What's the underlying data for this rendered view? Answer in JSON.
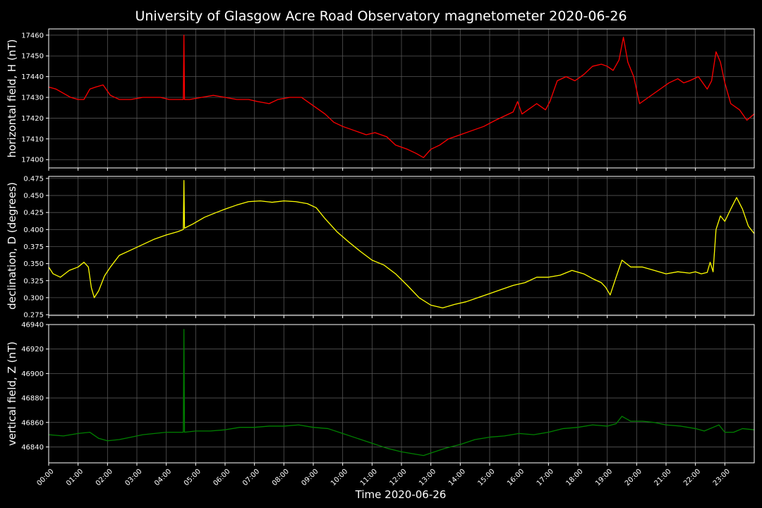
{
  "chart_data": {
    "title": "University of Glasgow Acre Road Observatory magnetometer 2020-06-26",
    "xlabel": "Time 2020-06-26",
    "x_tick_labels": [
      "00:00",
      "01:00",
      "02:00",
      "03:00",
      "04:00",
      "05:00",
      "06:00",
      "07:00",
      "08:00",
      "09:00",
      "10:00",
      "11:00",
      "12:00",
      "13:00",
      "14:00",
      "15:00",
      "16:00",
      "17:00",
      "18:00",
      "19:00",
      "20:00",
      "21:00",
      "22:00",
      "23:00"
    ],
    "xlim_hours": [
      0,
      24
    ],
    "grid": true,
    "panels": [
      {
        "type": "line",
        "ylabel": "horizontal field, H (nT)",
        "color": "#ff0000",
        "ylim": [
          17396,
          17463
        ],
        "yticks": [
          17400,
          17410,
          17420,
          17430,
          17440,
          17450,
          17460
        ],
        "x": [
          0,
          0.25,
          0.5,
          0.75,
          1.0,
          1.2,
          1.4,
          1.6,
          1.85,
          2.1,
          2.4,
          2.8,
          3.2,
          3.5,
          3.8,
          4.1,
          4.4,
          4.58,
          4.6,
          4.62,
          4.8,
          5.2,
          5.6,
          6.0,
          6.4,
          6.8,
          7.1,
          7.5,
          7.8,
          8.2,
          8.6,
          9.0,
          9.4,
          9.7,
          10.0,
          10.4,
          10.8,
          11.1,
          11.5,
          11.8,
          12.2,
          12.5,
          12.75,
          13.0,
          13.3,
          13.6,
          14.0,
          14.4,
          14.8,
          15.2,
          15.5,
          15.8,
          15.95,
          16.1,
          16.3,
          16.6,
          16.9,
          17.05,
          17.3,
          17.6,
          17.9,
          18.2,
          18.5,
          18.8,
          19.0,
          19.2,
          19.4,
          19.55,
          19.7,
          19.9,
          20.1,
          20.4,
          20.8,
          21.1,
          21.4,
          21.6,
          21.8,
          22.1,
          22.4,
          22.55,
          22.7,
          22.85,
          23.0,
          23.2,
          23.5,
          23.75,
          24.0
        ],
        "values": [
          17435,
          17434,
          17432,
          17430,
          17429,
          17429,
          17434,
          17435,
          17436,
          17431,
          17429,
          17429,
          17430,
          17430,
          17430,
          17429,
          17429,
          17429,
          17460,
          17429,
          17429,
          17430,
          17431,
          17430,
          17429,
          17429,
          17428,
          17427,
          17429,
          17430,
          17430,
          17426,
          17422,
          17418,
          17416,
          17414,
          17412,
          17413,
          17411,
          17407,
          17405,
          17403,
          17401,
          17405,
          17407,
          17410,
          17412,
          17414,
          17416,
          17419,
          17421,
          17423,
          17428,
          17422,
          17424,
          17427,
          17424,
          17428,
          17438,
          17440,
          17438,
          17441,
          17445,
          17446,
          17445,
          17443,
          17448,
          17459,
          17447,
          17440,
          17427,
          17430,
          17434,
          17437,
          17439,
          17437,
          17438,
          17440,
          17434,
          17438,
          17452,
          17447,
          17437,
          17427,
          17424,
          17419,
          17422
        ]
      },
      {
        "type": "line",
        "ylabel": "declination, D (degrees)",
        "color": "#ffff00",
        "ylim": [
          0.274,
          0.478
        ],
        "yticks": [
          0.275,
          0.3,
          0.325,
          0.35,
          0.375,
          0.4,
          0.425,
          0.45,
          0.475
        ],
        "ytick_labels": [
          "0.275",
          "0.300",
          "0.325",
          "0.350",
          "0.375",
          "0.400",
          "0.425",
          "0.450",
          "0.475"
        ],
        "x": [
          0,
          0.15,
          0.4,
          0.7,
          1.0,
          1.2,
          1.35,
          1.45,
          1.55,
          1.7,
          1.9,
          2.1,
          2.4,
          2.8,
          3.2,
          3.6,
          4.0,
          4.4,
          4.58,
          4.6,
          4.62,
          4.9,
          5.3,
          5.7,
          6.0,
          6.4,
          6.8,
          7.2,
          7.6,
          8.0,
          8.4,
          8.8,
          9.1,
          9.4,
          9.8,
          10.2,
          10.6,
          11.0,
          11.4,
          11.8,
          12.2,
          12.6,
          13.0,
          13.4,
          13.8,
          14.2,
          14.6,
          15.0,
          15.4,
          15.8,
          16.2,
          16.6,
          17.0,
          17.4,
          17.8,
          18.2,
          18.5,
          18.8,
          18.95,
          19.1,
          19.3,
          19.5,
          19.8,
          20.2,
          20.6,
          21.0,
          21.4,
          21.8,
          22.0,
          22.2,
          22.4,
          22.5,
          22.6,
          22.7,
          22.85,
          23.0,
          23.2,
          23.4,
          23.6,
          23.8,
          24.0
        ],
        "values": [
          0.345,
          0.335,
          0.33,
          0.34,
          0.345,
          0.352,
          0.345,
          0.315,
          0.3,
          0.31,
          0.332,
          0.345,
          0.362,
          0.37,
          0.378,
          0.386,
          0.392,
          0.397,
          0.4,
          0.472,
          0.402,
          0.408,
          0.418,
          0.425,
          0.43,
          0.436,
          0.441,
          0.442,
          0.44,
          0.442,
          0.441,
          0.438,
          0.432,
          0.416,
          0.397,
          0.382,
          0.368,
          0.355,
          0.348,
          0.335,
          0.318,
          0.3,
          0.289,
          0.285,
          0.29,
          0.294,
          0.3,
          0.306,
          0.312,
          0.318,
          0.322,
          0.33,
          0.33,
          0.333,
          0.34,
          0.335,
          0.328,
          0.322,
          0.315,
          0.304,
          0.33,
          0.355,
          0.345,
          0.345,
          0.34,
          0.335,
          0.338,
          0.336,
          0.338,
          0.335,
          0.337,
          0.352,
          0.338,
          0.4,
          0.42,
          0.412,
          0.43,
          0.447,
          0.43,
          0.405,
          0.394
        ]
      },
      {
        "type": "line",
        "ylabel": "vertical field, Z (nT)",
        "color": "#008000",
        "ylim": [
          46827,
          46940
        ],
        "yticks": [
          46840,
          46860,
          46880,
          46900,
          46920,
          46940
        ],
        "x": [
          0,
          0.5,
          1.0,
          1.4,
          1.7,
          2.0,
          2.4,
          2.8,
          3.2,
          3.6,
          4.0,
          4.4,
          4.58,
          4.6,
          4.62,
          5.0,
          5.5,
          6.0,
          6.5,
          7.0,
          7.5,
          8.0,
          8.5,
          9.0,
          9.5,
          10.0,
          10.5,
          11.0,
          11.5,
          12.0,
          12.5,
          12.75,
          13.0,
          13.5,
          14.0,
          14.5,
          15.0,
          15.5,
          16.0,
          16.5,
          17.0,
          17.5,
          18.0,
          18.5,
          19.0,
          19.3,
          19.5,
          19.8,
          20.2,
          20.6,
          21.0,
          21.5,
          22.0,
          22.3,
          22.6,
          22.8,
          23.0,
          23.3,
          23.6,
          24.0
        ],
        "values": [
          46850,
          46849,
          46851,
          46852,
          46847,
          46845,
          46846,
          46848,
          46850,
          46851,
          46852,
          46852,
          46852,
          46936,
          46852,
          46853,
          46853,
          46854,
          46856,
          46856,
          46857,
          46857,
          46858,
          46856,
          46855,
          46851,
          46847,
          46843,
          46839,
          46836,
          46834,
          46833,
          46835,
          46839,
          46842,
          46846,
          46848,
          46849,
          46851,
          46850,
          46852,
          46855,
          46856,
          46858,
          46857,
          46859,
          46865,
          46861,
          46861,
          46860,
          46858,
          46857,
          46855,
          46853,
          46856,
          46858,
          46852,
          46852,
          46855,
          46854
        ]
      }
    ]
  }
}
